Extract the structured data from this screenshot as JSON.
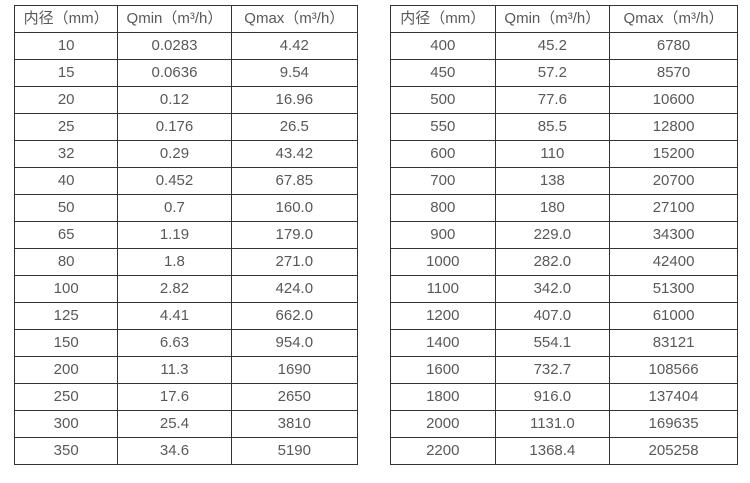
{
  "page": {
    "description": "Flow meter diameter vs minimum and maximum flow rate specification tables",
    "background": "#ffffff"
  },
  "colors": {
    "border": "#333333",
    "text": "#595959",
    "background": "#ffffff"
  },
  "tables": [
    {
      "name": "diameter-flow-table-left",
      "headers": [
        "内径（mm）",
        "Qmin（m³/h）",
        "Qmax（m³/h）"
      ],
      "rows": [
        [
          "10",
          "0.0283",
          "4.42"
        ],
        [
          "15",
          "0.0636",
          "9.54"
        ],
        [
          "20",
          "0.12",
          "16.96"
        ],
        [
          "25",
          "0.176",
          "26.5"
        ],
        [
          "32",
          "0.29",
          "43.42"
        ],
        [
          "40",
          "0.452",
          "67.85"
        ],
        [
          "50",
          "0.7",
          "160.0"
        ],
        [
          "65",
          "1.19",
          "179.0"
        ],
        [
          "80",
          "1.8",
          "271.0"
        ],
        [
          "100",
          "2.82",
          "424.0"
        ],
        [
          "125",
          "4.41",
          "662.0"
        ],
        [
          "150",
          "6.63",
          "954.0"
        ],
        [
          "200",
          "11.3",
          "1690"
        ],
        [
          "250",
          "17.6",
          "2650"
        ],
        [
          "300",
          "25.4",
          "3810"
        ],
        [
          "350",
          "34.6",
          "5190"
        ]
      ]
    },
    {
      "name": "diameter-flow-table-right",
      "headers": [
        "内径（mm）",
        "Qmin（m³/h）",
        "Qmax（m³/h）"
      ],
      "rows": [
        [
          "400",
          "45.2",
          "6780"
        ],
        [
          "450",
          "57.2",
          "8570"
        ],
        [
          "500",
          "77.6",
          "10600"
        ],
        [
          "550",
          "85.5",
          "12800"
        ],
        [
          "600",
          "110",
          "15200"
        ],
        [
          "700",
          "138",
          "20700"
        ],
        [
          "800",
          "180",
          "27100"
        ],
        [
          "900",
          "229.0",
          "34300"
        ],
        [
          "1000",
          "282.0",
          "42400"
        ],
        [
          "1100",
          "342.0",
          "51300"
        ],
        [
          "1200",
          "407.0",
          "61000"
        ],
        [
          "1400",
          "554.1",
          "83121"
        ],
        [
          "1600",
          "732.7",
          "108566"
        ],
        [
          "1800",
          "916.0",
          "137404"
        ],
        [
          "2000",
          "1131.0",
          "169635"
        ],
        [
          "2200",
          "1368.4",
          "205258"
        ]
      ]
    }
  ]
}
